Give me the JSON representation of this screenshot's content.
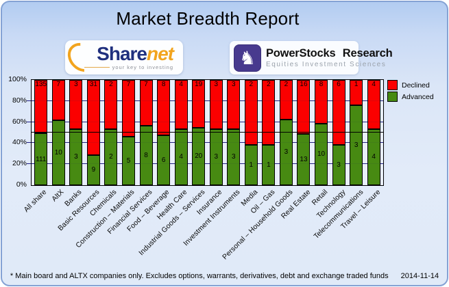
{
  "header": {
    "title": "Market Breadth Report",
    "sharenet_logo": {
      "word_part1": "Share",
      "word_part2": "net",
      "tagline": "your key to investing"
    },
    "powerstocks_logo": {
      "name": "PowerStocks Research",
      "subtitle": "Equities Investment Sciences",
      "knight_glyph": "♞"
    }
  },
  "chart_data": {
    "type": "bar",
    "stacked": true,
    "stack_mode": "percent",
    "title": "Market Breadth Report",
    "categories": [
      "All share",
      "AltX",
      "Banks",
      "Basic Resources",
      "Chemicals",
      "Construction – Materials",
      "Financial Services",
      "Food – Beverage",
      "Health Care",
      "Industrial Goods – Services",
      "Insurance",
      "Investment Instruments",
      "Media",
      "Oil – Gas",
      "Personal – Household Goods",
      "Real Estate",
      "Retail",
      "Technology",
      "Telecommunications",
      "Travel – Leisure"
    ],
    "series": [
      {
        "name": "Declined",
        "color": "#fb0000",
        "values": [
          135,
          7,
          3,
          31,
          2,
          7,
          7,
          8,
          4,
          19,
          3,
          3,
          2,
          2,
          2,
          16,
          8,
          6,
          1,
          4
        ]
      },
      {
        "name": "Advanced",
        "color": "#478a12",
        "values": [
          111,
          10,
          3,
          9,
          2,
          5,
          8,
          6,
          4,
          20,
          3,
          3,
          1,
          1,
          3,
          13,
          10,
          3,
          3,
          4
        ]
      }
    ],
    "yticks": [
      "0%",
      "20%",
      "40%",
      "60%",
      "80%",
      "100%"
    ],
    "ylim": [
      0,
      100
    ],
    "grid": true,
    "gridline_color": "#1d1d85",
    "reference_line_percent": 50,
    "legend_position": "top-right",
    "legend_entries": [
      "Declined",
      "Advanced"
    ]
  },
  "footer": {
    "disclaimer": "* Main board and ALTX companies only. Excludes options, warrants, derivatives, debt and exchange traded funds",
    "date": "2014-11-14"
  }
}
